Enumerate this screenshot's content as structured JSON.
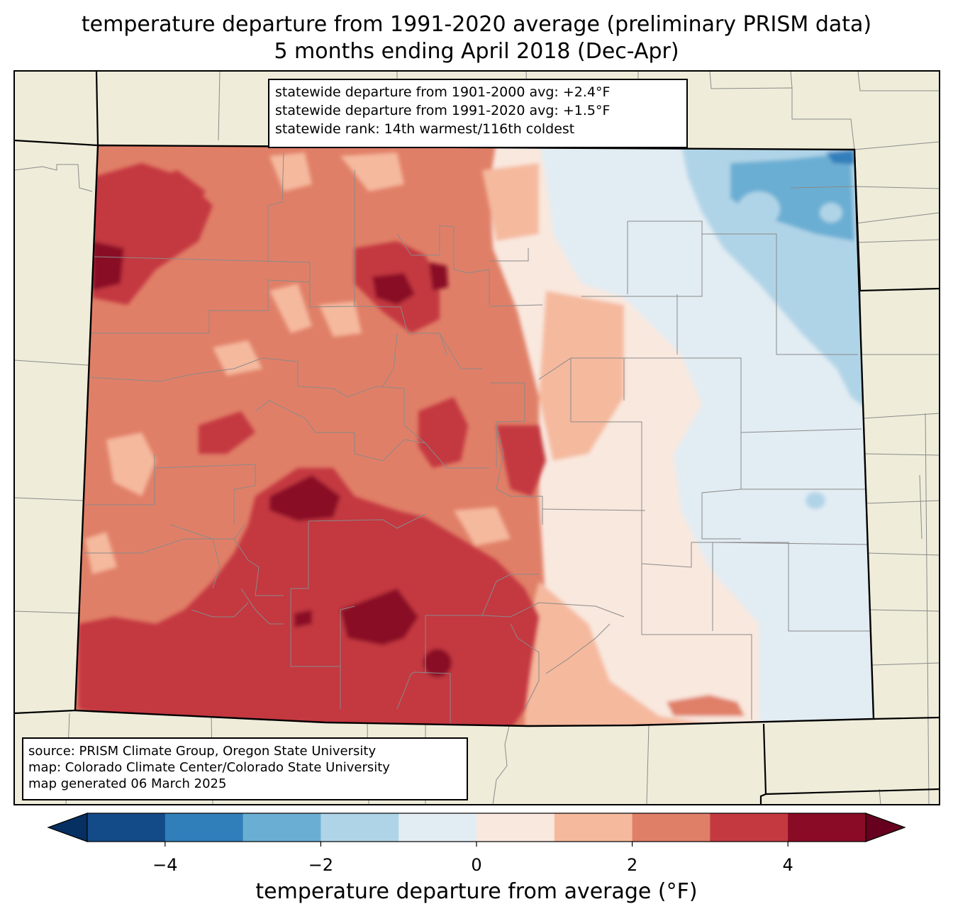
{
  "title": {
    "line1": "temperature departure from 1991-2020 average (preliminary PRISM data)",
    "line2": "5 months ending April 2018 (Dec-Apr)"
  },
  "stats": {
    "line1": "statewide departure from 1901-2000 avg: +2.4°F",
    "line2": "statewide departure from 1991-2020 avg: +1.5°F",
    "line3": "statewide rank: 14th warmest/116th coldest"
  },
  "source": {
    "line1": "source: PRISM Climate Group, Oregon State University",
    "line2": "map: Colorado Climate Center/Colorado State University",
    "line3": "map generated 06 March 2025"
  },
  "colorbar": {
    "label": "temperature departure from average (°F)",
    "ticks": [
      "−4",
      "−2",
      "0",
      "2",
      "4"
    ],
    "tick_values": [
      -4,
      -2,
      0,
      2,
      4
    ],
    "range": [
      -5,
      5
    ],
    "bins": [
      {
        "from": -5,
        "to": -4,
        "color": "#134a88"
      },
      {
        "from": -4,
        "to": -3,
        "color": "#307fbb"
      },
      {
        "from": -3,
        "to": -2,
        "color": "#6aaed3"
      },
      {
        "from": -2,
        "to": -1,
        "color": "#b0d4e7"
      },
      {
        "from": -1,
        "to": 0,
        "color": "#e2ecf3"
      },
      {
        "from": 0,
        "to": 1,
        "color": "#f9e8de"
      },
      {
        "from": 1,
        "to": 2,
        "color": "#f5b99e"
      },
      {
        "from": 2,
        "to": 3,
        "color": "#e07f67"
      },
      {
        "from": 3,
        "to": 4,
        "color": "#c4393f"
      },
      {
        "from": 4,
        "to": 5,
        "color": "#8a0b25"
      }
    ],
    "under_color": "#053061",
    "over_color": "#67001f"
  },
  "colors": {
    "land": "#efedda",
    "border": "#000000",
    "county": "#888888"
  }
}
